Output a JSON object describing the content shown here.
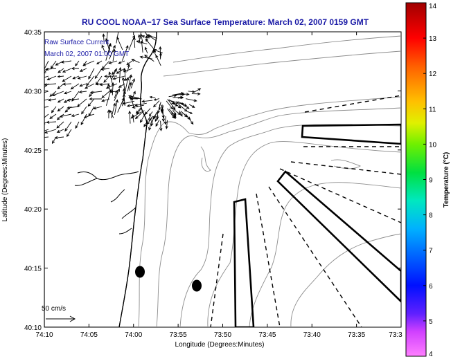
{
  "title": "RU COOL  NOAA−17  Sea Surface Temperature:  March 02, 2007 0159 GMT",
  "annotation": {
    "line1": "Raw Surface Current",
    "line2": "March 02, 2007 01:00 GMT"
  },
  "scale_label": "50 cm/s",
  "colors": {
    "title": "#1a1aa6",
    "annotation": "#1a1aa6",
    "land": "#ffffff",
    "coast": "#000000",
    "contour": "#8c8c8c",
    "vector": "#000000"
  },
  "chart_data": {
    "type": "map",
    "title": "RU COOL  NOAA−17  Sea Surface Temperature:  March 02, 2007 0159 GMT",
    "xlabel": "Longitude (Degrees:Minutes)",
    "ylabel": "Latitude (Degrees:Minutes)",
    "x_tick_labels": [
      "74:10",
      "74:05",
      "74:00",
      "73:55",
      "73:50",
      "73:45",
      "73:40",
      "73:35",
      "73:3"
    ],
    "y_tick_labels": [
      "40:35",
      "40:30",
      "40:25",
      "40:20",
      "40:15",
      "40:10"
    ],
    "xlim_deg": [
      -74.1667,
      -73.5
    ],
    "ylim_deg": [
      40.1667,
      40.5833
    ],
    "grid": false,
    "colorbar": {
      "label": "Temperature (°C)",
      "range": [
        4,
        14
      ],
      "tick_labels": [
        "4",
        "5",
        "6",
        "7",
        "8",
        "9",
        "10",
        "11",
        "12",
        "13",
        "14"
      ]
    },
    "markers": [
      {
        "name": "buoy",
        "lon": -73.9817,
        "lat": 40.2458
      },
      {
        "name": "buoy",
        "lon": -73.9033,
        "lat": 40.225
      }
    ],
    "scale_vector_cm_s": 50
  }
}
